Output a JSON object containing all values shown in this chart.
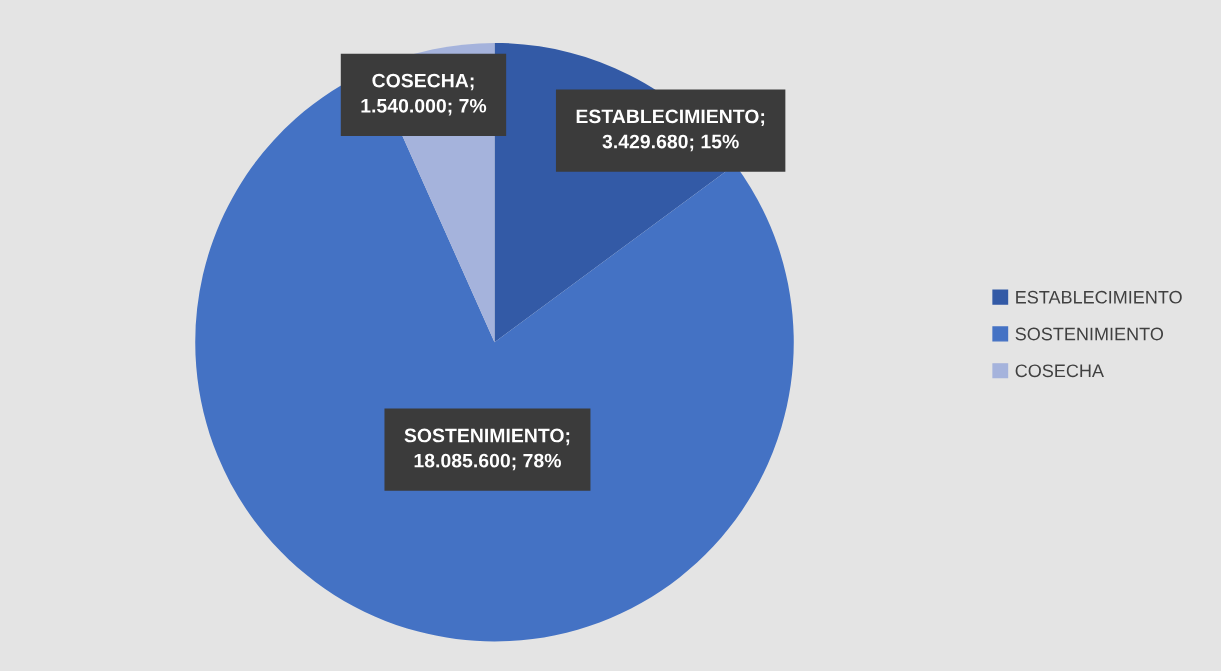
{
  "chart_data": {
    "type": "pie",
    "categories": [
      "ESTABLECIMIENTO",
      "SOSTENIMIENTO",
      "COSECHA"
    ],
    "values": [
      3429680,
      18085600,
      1540000
    ],
    "colors": [
      "#335aa6",
      "#4472c4",
      "#a5b3dc"
    ],
    "value_labels": [
      "ESTABLECIMIENTO;\n3.429.680; 15%",
      "SOSTENIMIENTO;\n18.085.600; 78%",
      "COSECHA;\n1.540.000; 7%"
    ],
    "legend": "right"
  }
}
